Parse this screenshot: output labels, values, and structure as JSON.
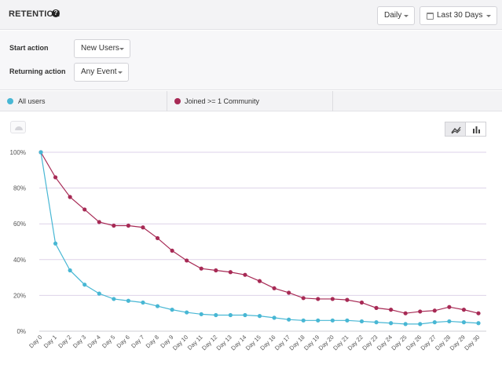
{
  "header": {
    "title": "RETENTION",
    "help_icon": "?",
    "granularity": "Daily",
    "range": "Last 30 Days"
  },
  "filters": {
    "start_label": "Start action",
    "start_value": "New Users",
    "returning_label": "Returning action",
    "returning_value": "Any Event"
  },
  "legend": {
    "items": [
      {
        "label": "All users",
        "color": "#48b7d4"
      },
      {
        "label": "Joined >= 1 Community",
        "color": "#a72a55"
      }
    ]
  },
  "icons": {
    "chart_settings": "gauge-icon",
    "line_toggle": "line-chart-icon",
    "bar_toggle": "bar-chart-icon"
  },
  "chart_data": {
    "type": "line",
    "categories": [
      "Day 0",
      "Day 1",
      "Day 2",
      "Day 3",
      "Day 4",
      "Day 5",
      "Day 6",
      "Day 7",
      "Day 8",
      "Day 9",
      "Day 10",
      "Day 11",
      "Day 12",
      "Day 13",
      "Day 14",
      "Day 15",
      "Day 16",
      "Day 17",
      "Day 18",
      "Day 19",
      "Day 20",
      "Day 21",
      "Day 22",
      "Day 23",
      "Day 24",
      "Day 25",
      "Day 26",
      "Day 27",
      "Day 28",
      "Day 29",
      "Day 30"
    ],
    "yticks": [
      "0%",
      "20%",
      "40%",
      "60%",
      "80%",
      "100%"
    ],
    "ylim": [
      0,
      100
    ],
    "grid": true,
    "series": [
      {
        "name": "All users",
        "color": "#48b7d4",
        "values": [
          100,
          49,
          34,
          26,
          21,
          18,
          17,
          16,
          14,
          12,
          10.5,
          9.5,
          9,
          9,
          9,
          8.5,
          7.5,
          6.5,
          6,
          6,
          6,
          6,
          5.5,
          5,
          4.5,
          4,
          4,
          5,
          5.5,
          5,
          4.5
        ]
      },
      {
        "name": "Joined >= 1 Community",
        "color": "#a72a55",
        "values": [
          100,
          86,
          75,
          68,
          61,
          59,
          59,
          58,
          52,
          45,
          39.5,
          35,
          34,
          33,
          31.5,
          28,
          24,
          21.5,
          18.5,
          18,
          18,
          17.5,
          16,
          13,
          12,
          10,
          11,
          11.5,
          13.5,
          12,
          10
        ]
      }
    ]
  }
}
